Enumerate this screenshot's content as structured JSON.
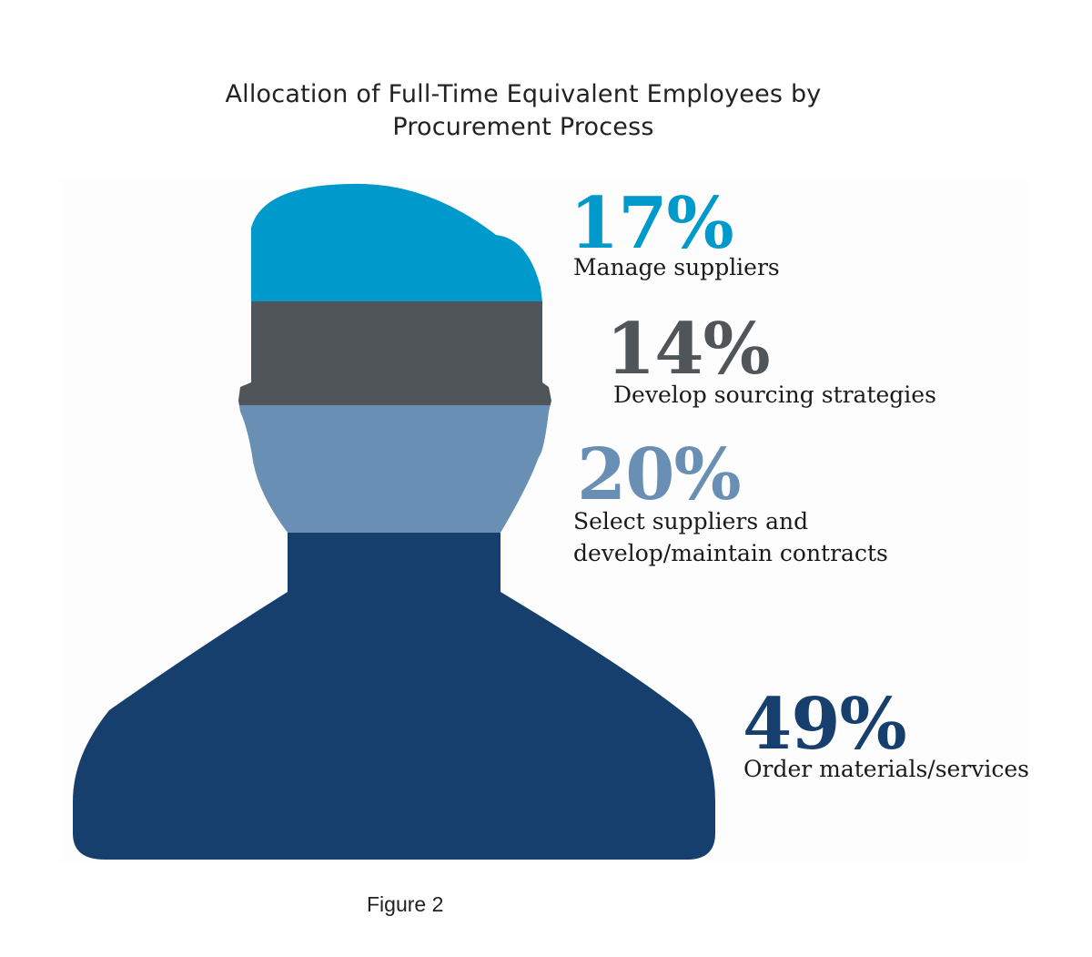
{
  "chart_data": {
    "type": "pie",
    "title_lines": [
      "Allocation of Full-Time Equivalent Employees by",
      "Procurement Process"
    ],
    "unit": "%",
    "segments": [
      {
        "value": 17,
        "display": "17%",
        "label_lines": [
          "Manage suppliers"
        ],
        "color": "#0099CC"
      },
      {
        "value": 14,
        "display": "14%",
        "label_lines": [
          "Develop sourcing strategies"
        ],
        "color": "#4F5558"
      },
      {
        "value": 20,
        "display": "20%",
        "label_lines": [
          "Select suppliers and",
          "develop/maintain contracts"
        ],
        "color": "#6A8FB4"
      },
      {
        "value": 49,
        "display": "49%",
        "label_lines": [
          "Order materials/services"
        ],
        "color": "#173F6E"
      }
    ]
  },
  "caption": "Figure 2"
}
